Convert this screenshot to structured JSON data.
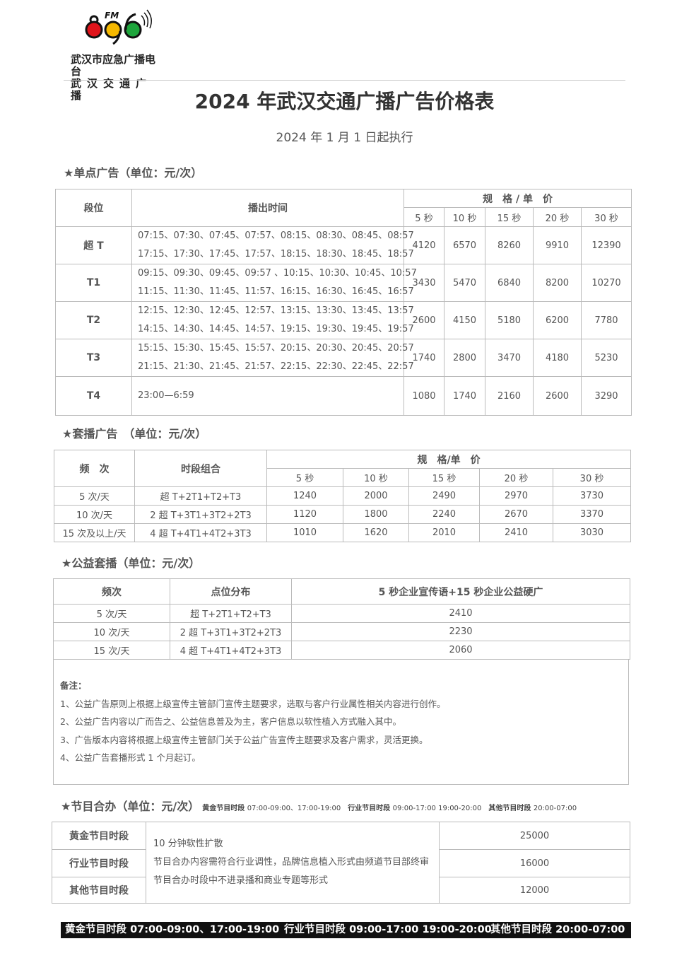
{
  "logo": {
    "brand": "FM 89.6",
    "line1": "武汉市应急广播电台",
    "line2": "武汉交通广播",
    "colors": [
      "#e0141b",
      "#f5b800",
      "#1ea53c"
    ]
  },
  "title": "2024 年武汉交通广播广告价格表",
  "subtitle": "2024 年 1 月 1 日起执行",
  "single": {
    "heading": "★单点广告（单位：元/次）",
    "headers": {
      "slot": "段位",
      "time": "播出时间",
      "spec": "规　格 / 单　价",
      "durations": [
        "5 秒",
        "10 秒",
        "15 秒",
        "20 秒",
        "30 秒"
      ]
    },
    "rows": [
      {
        "slot": "超 T",
        "times": [
          "07:15、07:30、07:45、07:57、08:15、08:30、08:45、08:57",
          "17:15、17:30、17:45、17:57、18:15、18:30、18:45、18:57"
        ],
        "prices": [
          "4120",
          "6570",
          "8260",
          "9910",
          "12390"
        ]
      },
      {
        "slot": "T1",
        "times": [
          "09:15、09:30、09:45、09:57 、10:15、10:30、10:45、10:57",
          "11:15、11:30、11:45、11:57、16:15、16:30、16:45、16:57"
        ],
        "prices": [
          "3430",
          "5470",
          "6840",
          "8200",
          "10270"
        ]
      },
      {
        "slot": "T2",
        "times": [
          "12:15、12:30、12:45、12:57、13:15、13:30、13:45、13:57",
          "14:15、14:30、14:45、14:57、19:15、19:30、19:45、19:57"
        ],
        "prices": [
          "2600",
          "4150",
          "5180",
          "6200",
          "7780"
        ]
      },
      {
        "slot": "T3",
        "times": [
          "15:15、15:30、15:45、15:57、20:15、20:30、20:45、20:57",
          "21:15、21:30、21:45、21:57、22:15、22:30、22:45、22:57"
        ],
        "prices": [
          "1740",
          "2800",
          "3470",
          "4180",
          "5230"
        ]
      },
      {
        "slot": "T4",
        "times": [
          "23:00—6:59"
        ],
        "prices": [
          "1080",
          "1740",
          "2160",
          "2600",
          "3290"
        ]
      }
    ]
  },
  "package": {
    "heading": "★套播广告　（单位：元/次）",
    "headers": {
      "freq": "频　次",
      "combo": "时段组合",
      "spec": "规　格/单　价",
      "durations": [
        "5 秒",
        "10 秒",
        "15 秒",
        "20 秒",
        "30 秒"
      ]
    },
    "rows": [
      {
        "freq": "5 次/天",
        "combo": "超 T+2T1+T2+T3",
        "prices": [
          "1240",
          "2000",
          "2490",
          "2970",
          "3730"
        ]
      },
      {
        "freq": "10 次/天",
        "combo": "2 超 T+3T1+3T2+2T3",
        "prices": [
          "1120",
          "1800",
          "2240",
          "2670",
          "3370"
        ]
      },
      {
        "freq": "15 次及以上/天",
        "combo": "4 超 T+4T1+4T2+3T3",
        "prices": [
          "1010",
          "1620",
          "2010",
          "2410",
          "3030"
        ]
      }
    ]
  },
  "public": {
    "heading": "★公益套播（单位：元/次）",
    "headers": {
      "freq": "频次",
      "dist": "点位分布",
      "price": "5 秒企业宣传语+15 秒企业公益硬广"
    },
    "rows": [
      {
        "freq": "5 次/天",
        "dist": "超 T+2T1+T2+T3",
        "price": "2410"
      },
      {
        "freq": "10 次/天",
        "dist": "2 超 T+3T1+3T2+2T3",
        "price": "2230"
      },
      {
        "freq": "15 次/天",
        "dist": "4 超 T+4T1+4T2+3T3",
        "price": "2060"
      }
    ],
    "notes_title": "备注：",
    "notes": [
      "1、公益广告原则上根据上级宣传主管部门宣传主题要求，选取与客户行业属性相关内容进行创作。",
      "2、公益广告内容以广而告之、公益信息普及为主，客户信息以软性植入方式融入其中。",
      "3、广告版本内容将根据上级宣传主管部门关于公益广告宣传主题要求及客户需求，灵活更换。",
      "4、公益广告套播形式 1 个月起订。"
    ]
  },
  "program": {
    "heading": "★节目合办（单位：元/次）",
    "inline_slots": [
      {
        "label": "黄金节目时段",
        "time": "07:00-09:00、17:00-19:00"
      },
      {
        "label": "行业节目时段",
        "time": "09:00-17:00 19:00-20:00"
      },
      {
        "label": "其他节目时段",
        "time": "20:00-07:00"
      }
    ],
    "rows": [
      {
        "slot": "黄金节目时段",
        "price": "25000"
      },
      {
        "slot": "行业节目时段",
        "price": "16000"
      },
      {
        "slot": "其他节目时段",
        "price": "12000"
      }
    ],
    "description": [
      "10 分钟软性扩散",
      "节目合办内容需符合行业调性，品牌信息植入形式由频道节目部终审",
      "节目合办时段中不进录播和商业专题等形式"
    ]
  },
  "footer_bar": [
    {
      "label": "黄金节目时段",
      "time": "07:00-09:00、17:00-19:00"
    },
    {
      "label": "行业节目时段",
      "time": "09:00-17:00 19:00-20:00"
    },
    {
      "label": "其他节目时段",
      "time": "20:00-07:00"
    }
  ]
}
